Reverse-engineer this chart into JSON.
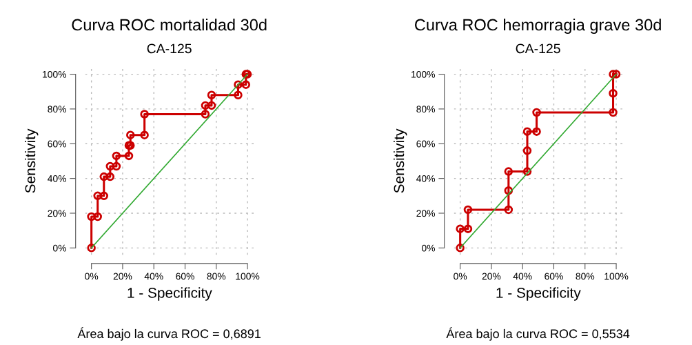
{
  "chart_data": [
    {
      "type": "line",
      "title": "Curva ROC mortalidad 30d",
      "subtitle": "CA-125",
      "xlabel": "1 - Specificity",
      "ylabel": "Sensitivity",
      "series": [
        {
          "color": "#cc0000",
          "marker": "circle",
          "x": [
            0,
            0,
            4,
            4,
            8,
            8,
            12,
            12,
            16,
            16,
            24,
            24,
            25,
            25,
            34,
            34,
            73,
            73,
            77,
            77,
            94,
            94,
            99,
            99,
            100
          ],
          "values": [
            0,
            18,
            18,
            30,
            30,
            41,
            41,
            47,
            47,
            53,
            53,
            59,
            59,
            65,
            65,
            77,
            77,
            82,
            82,
            88,
            88,
            94,
            94,
            100,
            100
          ]
        },
        {
          "color": "#33aa33",
          "marker": "none",
          "x": [
            0,
            100
          ],
          "values": [
            0,
            100
          ]
        }
      ],
      "xlim": [
        -4,
        104
      ],
      "ylim": [
        -4,
        104
      ],
      "xticks": [
        {
          "value": 0,
          "label": "0%"
        },
        {
          "value": 20,
          "label": "20%"
        },
        {
          "value": 40,
          "label": "40%"
        },
        {
          "value": 60,
          "label": "60%"
        },
        {
          "value": 80,
          "label": "80%"
        },
        {
          "value": 100,
          "label": "100%"
        }
      ],
      "yticks": [
        {
          "value": 0,
          "label": "0%"
        },
        {
          "value": 20,
          "label": "20%"
        },
        {
          "value": 40,
          "label": "40%"
        },
        {
          "value": 60,
          "label": "60%"
        },
        {
          "value": 80,
          "label": "80%"
        },
        {
          "value": 100,
          "label": "100%"
        }
      ],
      "grid": true,
      "annotations": [
        "Área bajo la curva ROC = 0,6891"
      ]
    },
    {
      "type": "line",
      "title": "Curva ROC hemorragia grave 30d",
      "subtitle": "CA-125",
      "xlabel": "1 - Specificity",
      "ylabel": "Sensitivity",
      "series": [
        {
          "color": "#cc0000",
          "marker": "circle",
          "x": [
            0,
            0,
            5,
            5,
            31,
            31,
            31,
            43,
            43,
            43,
            49,
            49,
            98,
            98,
            98,
            100
          ],
          "values": [
            0,
            11,
            11,
            22,
            22,
            33,
            44,
            44,
            56,
            67,
            67,
            78,
            78,
            89,
            100,
            100
          ]
        },
        {
          "color": "#33aa33",
          "marker": "none",
          "x": [
            0,
            100
          ],
          "values": [
            0,
            100
          ]
        }
      ],
      "xlim": [
        -4,
        104
      ],
      "ylim": [
        -4,
        104
      ],
      "xticks": [
        {
          "value": 0,
          "label": "0%"
        },
        {
          "value": 20,
          "label": "20%"
        },
        {
          "value": 40,
          "label": "40%"
        },
        {
          "value": 60,
          "label": "60%"
        },
        {
          "value": 80,
          "label": "80%"
        },
        {
          "value": 100,
          "label": "100%"
        }
      ],
      "yticks": [
        {
          "value": 0,
          "label": "0%"
        },
        {
          "value": 20,
          "label": "20%"
        },
        {
          "value": 40,
          "label": "40%"
        },
        {
          "value": 60,
          "label": "60%"
        },
        {
          "value": 80,
          "label": "80%"
        },
        {
          "value": 100,
          "label": "100%"
        }
      ],
      "grid": true,
      "annotations": [
        "Área bajo la curva ROC = 0,5534"
      ]
    }
  ]
}
